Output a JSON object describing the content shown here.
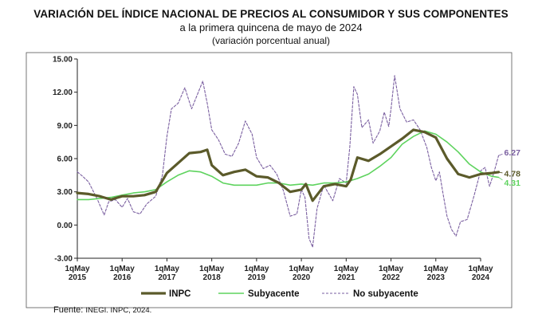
{
  "title": "VARIACIÓN DEL ÍNDICE NACIONAL DE PRECIOS AL CONSUMIDOR Y SUS COMPONENTES",
  "subtitle": "a la primera quincena de mayo de 2024",
  "note": "(variación porcentual anual)",
  "source": {
    "label": "Fuente:",
    "value": "INEGI. INPC, 2024."
  },
  "colors": {
    "inpc": "#5b5a2a",
    "subyacente": "#5ed35e",
    "no_subyacente": "#7a5fa0"
  },
  "chart_data": {
    "type": "line",
    "x_tick_labels": [
      [
        "1qMay",
        "2015"
      ],
      [
        "1qMay",
        "2016"
      ],
      [
        "1qMay",
        "2017"
      ],
      [
        "1qMay",
        "2018"
      ],
      [
        "1qMay",
        "2019"
      ],
      [
        "1qMay",
        "2020"
      ],
      [
        "1qMay",
        "2021"
      ],
      [
        "1qMay",
        "2022"
      ],
      [
        "1qMay",
        "2023"
      ],
      [
        "1qMay",
        "2024"
      ]
    ],
    "y_ticks": [
      "15.00",
      "12.00",
      "9.00",
      "6.00",
      "3.00",
      "0.00",
      "-3.00"
    ],
    "ylim": [
      -3,
      15
    ],
    "x_domain_years": [
      2015,
      2024
    ],
    "grid": false,
    "legend_position": "bottom",
    "series": [
      {
        "name": "INPC",
        "end_label": "4.78",
        "points": [
          [
            2015.0,
            2.9
          ],
          [
            2015.25,
            2.8
          ],
          [
            2015.5,
            2.6
          ],
          [
            2015.75,
            2.3
          ],
          [
            2016.0,
            2.6
          ],
          [
            2016.25,
            2.6
          ],
          [
            2016.5,
            2.7
          ],
          [
            2016.75,
            3.0
          ],
          [
            2017.0,
            4.7
          ],
          [
            2017.25,
            5.6
          ],
          [
            2017.5,
            6.5
          ],
          [
            2017.75,
            6.6
          ],
          [
            2017.9,
            6.8
          ],
          [
            2018.0,
            5.4
          ],
          [
            2018.25,
            4.5
          ],
          [
            2018.5,
            4.8
          ],
          [
            2018.75,
            5.0
          ],
          [
            2019.0,
            4.4
          ],
          [
            2019.25,
            4.3
          ],
          [
            2019.5,
            3.8
          ],
          [
            2019.75,
            3.0
          ],
          [
            2020.0,
            3.2
          ],
          [
            2020.1,
            3.7
          ],
          [
            2020.25,
            2.2
          ],
          [
            2020.5,
            3.5
          ],
          [
            2020.75,
            3.7
          ],
          [
            2021.0,
            3.5
          ],
          [
            2021.1,
            4.1
          ],
          [
            2021.25,
            6.1
          ],
          [
            2021.5,
            5.8
          ],
          [
            2021.75,
            6.4
          ],
          [
            2022.0,
            7.1
          ],
          [
            2022.25,
            7.8
          ],
          [
            2022.5,
            8.6
          ],
          [
            2022.75,
            8.4
          ],
          [
            2023.0,
            7.9
          ],
          [
            2023.25,
            6.0
          ],
          [
            2023.5,
            4.6
          ],
          [
            2023.75,
            4.3
          ],
          [
            2024.0,
            4.6
          ],
          [
            2024.25,
            4.7
          ],
          [
            2024.4,
            4.78
          ]
        ]
      },
      {
        "name": "Subyacente",
        "end_label": "4.31",
        "points": [
          [
            2015.0,
            2.3
          ],
          [
            2015.25,
            2.3
          ],
          [
            2015.5,
            2.4
          ],
          [
            2015.75,
            2.5
          ],
          [
            2016.0,
            2.7
          ],
          [
            2016.25,
            2.9
          ],
          [
            2016.5,
            3.0
          ],
          [
            2016.75,
            3.2
          ],
          [
            2017.0,
            3.9
          ],
          [
            2017.25,
            4.5
          ],
          [
            2017.5,
            4.9
          ],
          [
            2017.75,
            4.8
          ],
          [
            2018.0,
            4.4
          ],
          [
            2018.25,
            3.8
          ],
          [
            2018.5,
            3.6
          ],
          [
            2018.75,
            3.6
          ],
          [
            2019.0,
            3.6
          ],
          [
            2019.25,
            3.8
          ],
          [
            2019.5,
            3.8
          ],
          [
            2019.75,
            3.6
          ],
          [
            2020.0,
            3.7
          ],
          [
            2020.25,
            3.6
          ],
          [
            2020.5,
            3.8
          ],
          [
            2020.75,
            3.8
          ],
          [
            2021.0,
            3.9
          ],
          [
            2021.25,
            4.2
          ],
          [
            2021.5,
            4.6
          ],
          [
            2021.75,
            5.3
          ],
          [
            2022.0,
            6.1
          ],
          [
            2022.25,
            7.3
          ],
          [
            2022.5,
            8.0
          ],
          [
            2022.75,
            8.5
          ],
          [
            2023.0,
            8.2
          ],
          [
            2023.25,
            7.5
          ],
          [
            2023.5,
            6.6
          ],
          [
            2023.75,
            5.5
          ],
          [
            2024.0,
            4.8
          ],
          [
            2024.25,
            4.4
          ],
          [
            2024.4,
            4.31
          ]
        ]
      },
      {
        "name": "No subyacente",
        "end_label": "6.27",
        "points": [
          [
            2015.0,
            4.8
          ],
          [
            2015.12,
            4.4
          ],
          [
            2015.25,
            3.9
          ],
          [
            2015.45,
            2.3
          ],
          [
            2015.6,
            0.9
          ],
          [
            2015.7,
            2.1
          ],
          [
            2015.85,
            2.3
          ],
          [
            2016.0,
            1.6
          ],
          [
            2016.12,
            2.4
          ],
          [
            2016.25,
            1.2
          ],
          [
            2016.4,
            1.0
          ],
          [
            2016.55,
            1.9
          ],
          [
            2016.75,
            2.6
          ],
          [
            2016.9,
            4.5
          ],
          [
            2017.0,
            8.0
          ],
          [
            2017.1,
            10.5
          ],
          [
            2017.25,
            11.0
          ],
          [
            2017.4,
            12.4
          ],
          [
            2017.55,
            10.5
          ],
          [
            2017.7,
            12.0
          ],
          [
            2017.8,
            13.0
          ],
          [
            2017.9,
            11.0
          ],
          [
            2018.0,
            8.6
          ],
          [
            2018.15,
            7.7
          ],
          [
            2018.3,
            6.4
          ],
          [
            2018.45,
            6.2
          ],
          [
            2018.6,
            7.4
          ],
          [
            2018.75,
            9.4
          ],
          [
            2018.9,
            8.2
          ],
          [
            2019.0,
            6.1
          ],
          [
            2019.15,
            5.1
          ],
          [
            2019.3,
            5.4
          ],
          [
            2019.45,
            4.6
          ],
          [
            2019.6,
            3.1
          ],
          [
            2019.75,
            0.8
          ],
          [
            2019.9,
            1.0
          ],
          [
            2020.0,
            3.2
          ],
          [
            2020.08,
            2.5
          ],
          [
            2020.17,
            -1.2
          ],
          [
            2020.25,
            -2.0
          ],
          [
            2020.35,
            1.5
          ],
          [
            2020.5,
            3.6
          ],
          [
            2020.7,
            2.2
          ],
          [
            2020.85,
            4.2
          ],
          [
            2021.0,
            3.8
          ],
          [
            2021.08,
            7.0
          ],
          [
            2021.17,
            12.5
          ],
          [
            2021.25,
            11.8
          ],
          [
            2021.35,
            8.8
          ],
          [
            2021.5,
            9.5
          ],
          [
            2021.6,
            7.4
          ],
          [
            2021.75,
            8.5
          ],
          [
            2021.85,
            10.2
          ],
          [
            2021.95,
            8.9
          ],
          [
            2022.0,
            10.5
          ],
          [
            2022.08,
            13.5
          ],
          [
            2022.2,
            10.5
          ],
          [
            2022.35,
            9.3
          ],
          [
            2022.5,
            9.5
          ],
          [
            2022.65,
            8.6
          ],
          [
            2022.8,
            7.0
          ],
          [
            2022.9,
            5.2
          ],
          [
            2023.0,
            4.0
          ],
          [
            2023.08,
            4.8
          ],
          [
            2023.15,
            3.1
          ],
          [
            2023.25,
            0.8
          ],
          [
            2023.35,
            -0.4
          ],
          [
            2023.45,
            -1.0
          ],
          [
            2023.55,
            0.3
          ],
          [
            2023.7,
            0.5
          ],
          [
            2023.85,
            2.6
          ],
          [
            2024.0,
            4.9
          ],
          [
            2024.1,
            5.2
          ],
          [
            2024.2,
            3.5
          ],
          [
            2024.3,
            4.8
          ],
          [
            2024.4,
            6.27
          ]
        ]
      }
    ]
  }
}
